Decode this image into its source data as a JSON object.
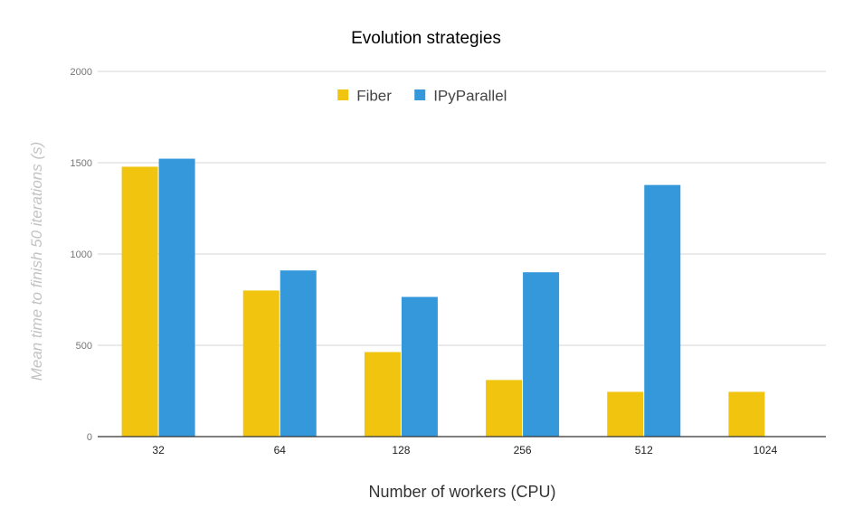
{
  "chart_data": {
    "type": "bar",
    "title": "Evolution strategies",
    "xlabel": "Number of workers (CPU)",
    "ylabel": "Mean time to finish 50 iterations (s)",
    "categories": [
      "32",
      "64",
      "128",
      "256",
      "512",
      "1024"
    ],
    "series": [
      {
        "name": "Fiber",
        "color": "#f1c40f",
        "values": [
          1478,
          800,
          463,
          310,
          245,
          245
        ]
      },
      {
        "name": "IPyParallel",
        "color": "#3498db",
        "values": [
          1522,
          910,
          765,
          900,
          1378,
          null
        ]
      }
    ],
    "ylim": [
      0,
      2000
    ],
    "yticks": [
      0,
      500,
      1000,
      1500,
      2000
    ],
    "grid": true,
    "legend_position": "top"
  }
}
